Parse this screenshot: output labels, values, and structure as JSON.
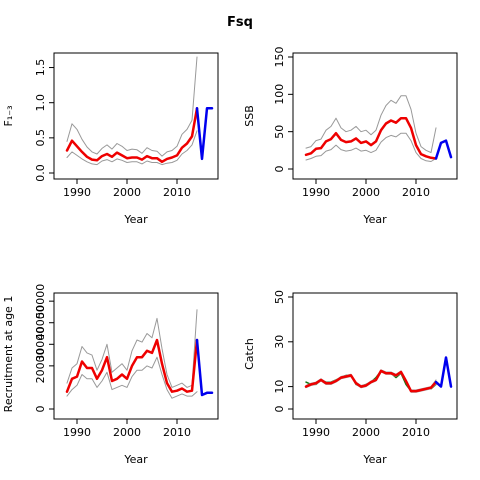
{
  "title": "Fsq",
  "colors": {
    "median": "#ee0000",
    "forecast": "#0000ee",
    "bounds": "#999999",
    "observed": "#117711",
    "axis": "#000000"
  },
  "chart_data": [
    {
      "type": "line",
      "xlabel": "Year",
      "ylabel": "F₁₋₃",
      "xlim": [
        1987,
        2017
      ],
      "ylim": [
        0,
        1.65
      ],
      "xticks": [
        1990,
        2000,
        2010
      ],
      "xtick_labels": [
        "1990",
        "2000",
        "2010"
      ],
      "yticks": [
        0,
        0.5,
        1,
        1.5
      ],
      "ytick_labels": [
        "0.0",
        "0.5",
        "1.0",
        "1.5"
      ],
      "series": [
        {
          "role": "upper",
          "x": [
            1988,
            1989,
            1990,
            1991,
            1992,
            1993,
            1994,
            1995,
            1996,
            1997,
            1998,
            1999,
            2000,
            2001,
            2002,
            2003,
            2004,
            2005,
            2006,
            2007,
            2008,
            2009,
            2010,
            2011,
            2012,
            2013,
            2014
          ],
          "values": [
            0.45,
            0.7,
            0.62,
            0.48,
            0.37,
            0.3,
            0.27,
            0.35,
            0.4,
            0.34,
            0.42,
            0.38,
            0.32,
            0.34,
            0.33,
            0.28,
            0.36,
            0.32,
            0.31,
            0.24,
            0.3,
            0.32,
            0.38,
            0.55,
            0.62,
            0.75,
            1.65
          ]
        },
        {
          "role": "lower",
          "x": [
            1988,
            1989,
            1990,
            1991,
            1992,
            1993,
            1994,
            1995,
            1996,
            1997,
            1998,
            1999,
            2000,
            2001,
            2002,
            2003,
            2004,
            2005,
            2006,
            2007,
            2008,
            2009,
            2010,
            2011,
            2012,
            2013,
            2014
          ],
          "values": [
            0.22,
            0.3,
            0.25,
            0.2,
            0.16,
            0.13,
            0.12,
            0.17,
            0.19,
            0.16,
            0.2,
            0.18,
            0.15,
            0.16,
            0.16,
            0.13,
            0.17,
            0.15,
            0.15,
            0.12,
            0.14,
            0.15,
            0.18,
            0.27,
            0.32,
            0.4,
            0.6
          ]
        },
        {
          "role": "median",
          "x": [
            1988,
            1989,
            1990,
            1991,
            1992,
            1993,
            1994,
            1995,
            1996,
            1997,
            1998,
            1999,
            2000,
            2001,
            2002,
            2003,
            2004,
            2005,
            2006,
            2007,
            2008,
            2009,
            2010,
            2011,
            2012,
            2013,
            2014
          ],
          "values": [
            0.32,
            0.46,
            0.38,
            0.3,
            0.23,
            0.19,
            0.18,
            0.24,
            0.27,
            0.23,
            0.29,
            0.25,
            0.21,
            0.22,
            0.22,
            0.19,
            0.24,
            0.21,
            0.21,
            0.16,
            0.2,
            0.22,
            0.25,
            0.36,
            0.42,
            0.52,
            0.92
          ]
        },
        {
          "role": "forecast",
          "x": [
            2014,
            2015,
            2016,
            2017
          ],
          "values": [
            0.92,
            0.2,
            0.92,
            0.92
          ]
        }
      ]
    },
    {
      "type": "line",
      "xlabel": "Year",
      "ylabel": "SSB",
      "xlim": [
        1987,
        2017
      ],
      "ylim": [
        0,
        150
      ],
      "xticks": [
        1990,
        2000,
        2010
      ],
      "xtick_labels": [
        "1990",
        "2000",
        "2010"
      ],
      "yticks": [
        0,
        50,
        100,
        150
      ],
      "ytick_labels": [
        "0",
        "50",
        "100",
        "150"
      ],
      "series": [
        {
          "role": "upper",
          "x": [
            1988,
            1989,
            1990,
            1991,
            1992,
            1993,
            1994,
            1995,
            1996,
            1997,
            1998,
            1999,
            2000,
            2001,
            2002,
            2003,
            2004,
            2005,
            2006,
            2007,
            2008,
            2009,
            2010,
            2011,
            2012,
            2013,
            2014
          ],
          "values": [
            28,
            30,
            38,
            40,
            52,
            57,
            68,
            55,
            50,
            52,
            57,
            50,
            52,
            46,
            52,
            72,
            85,
            92,
            88,
            98,
            98,
            80,
            48,
            30,
            25,
            22,
            55
          ]
        },
        {
          "role": "lower",
          "x": [
            1988,
            1989,
            1990,
            1991,
            1992,
            1993,
            1994,
            1995,
            1996,
            1997,
            1998,
            1999,
            2000,
            2001,
            2002,
            2003,
            2004,
            2005,
            2006,
            2007,
            2008,
            2009,
            2010,
            2011,
            2012,
            2013,
            2014
          ],
          "values": [
            12,
            14,
            17,
            18,
            24,
            26,
            32,
            26,
            24,
            25,
            28,
            24,
            25,
            22,
            25,
            36,
            42,
            45,
            43,
            48,
            48,
            38,
            22,
            14,
            11,
            10,
            14
          ]
        },
        {
          "role": "median",
          "x": [
            1988,
            1989,
            1990,
            1991,
            1992,
            1993,
            1994,
            1995,
            1996,
            1997,
            1998,
            1999,
            2000,
            2001,
            2002,
            2003,
            2004,
            2005,
            2006,
            2007,
            2008,
            2009,
            2010,
            2011,
            2012,
            2013,
            2014
          ],
          "values": [
            19,
            21,
            27,
            28,
            37,
            40,
            48,
            39,
            36,
            37,
            41,
            35,
            37,
            32,
            37,
            52,
            61,
            65,
            62,
            68,
            68,
            55,
            32,
            20,
            17,
            15,
            14
          ]
        },
        {
          "role": "forecast",
          "x": [
            2014,
            2015,
            2016,
            2017
          ],
          "values": [
            14,
            35,
            38,
            16
          ]
        }
      ]
    },
    {
      "type": "line",
      "xlabel": "Year",
      "ylabel": "Recruitment at age 1",
      "xlim": [
        1987,
        2017
      ],
      "ylim": [
        0,
        51000
      ],
      "xticks": [
        1990,
        2000,
        2010
      ],
      "xtick_labels": [
        "1990",
        "2000",
        "2010"
      ],
      "yticks": [
        0,
        20000,
        30000,
        40000,
        50000
      ],
      "ytick_labels": [
        "0",
        "20000",
        "30000",
        "40000",
        "50000"
      ],
      "series": [
        {
          "role": "upper",
          "x": [
            1988,
            1989,
            1990,
            1991,
            1992,
            1993,
            1994,
            1995,
            1996,
            1997,
            1998,
            1999,
            2000,
            2001,
            2002,
            2003,
            2004,
            2005,
            2006,
            2007,
            2008,
            2009,
            2010,
            2011,
            2012,
            2013,
            2014
          ],
          "values": [
            12000,
            19000,
            21000,
            29000,
            26000,
            25000,
            18000,
            23000,
            30000,
            17000,
            19000,
            21000,
            18000,
            27000,
            32000,
            31000,
            35000,
            33000,
            42000,
            28000,
            16000,
            10000,
            11000,
            12000,
            10000,
            11000,
            46000
          ]
        },
        {
          "role": "lower",
          "x": [
            1988,
            1989,
            1990,
            1991,
            1992,
            1993,
            1994,
            1995,
            1996,
            1997,
            1998,
            1999,
            2000,
            2001,
            2002,
            2003,
            2004,
            2005,
            2006,
            2007,
            2008,
            2009,
            2010,
            2011,
            2012,
            2013,
            2014
          ],
          "values": [
            6000,
            9000,
            11000,
            16000,
            14000,
            14000,
            10000,
            13000,
            17000,
            9000,
            10000,
            11000,
            10000,
            15000,
            18000,
            18000,
            20000,
            19000,
            24000,
            16000,
            9000,
            5000,
            6000,
            7000,
            6000,
            6000,
            8000
          ]
        },
        {
          "role": "median",
          "x": [
            1988,
            1989,
            1990,
            1991,
            1992,
            1993,
            1994,
            1995,
            1996,
            1997,
            1998,
            1999,
            2000,
            2001,
            2002,
            2003,
            2004,
            2005,
            2006,
            2007,
            2008,
            2009,
            2010,
            2011,
            2012,
            2013,
            2014
          ],
          "values": [
            8000,
            14000,
            15000,
            22000,
            19000,
            19000,
            14000,
            18000,
            24000,
            13000,
            14000,
            16000,
            14000,
            20000,
            24000,
            24000,
            27000,
            26000,
            32000,
            21000,
            12000,
            8000,
            8500,
            9500,
            8000,
            8500,
            32000
          ]
        },
        {
          "role": "forecast",
          "x": [
            2014,
            2015,
            2016,
            2017
          ],
          "values": [
            32000,
            6500,
            7500,
            7500
          ]
        }
      ]
    },
    {
      "type": "line",
      "xlabel": "Year",
      "ylabel": "Catch",
      "xlim": [
        1987,
        2017
      ],
      "ylim": [
        0,
        50
      ],
      "xticks": [
        1990,
        2000,
        2010
      ],
      "xtick_labels": [
        "1990",
        "2000",
        "2010"
      ],
      "yticks": [
        0,
        10,
        30,
        50
      ],
      "ytick_labels": [
        "0",
        "10",
        "30",
        "50"
      ],
      "series": [
        {
          "role": "observed",
          "x": [
            1988,
            1989,
            1990,
            1991,
            1992,
            1993,
            1994,
            1995,
            1996,
            1997,
            1998,
            1999,
            2000,
            2001,
            2002,
            2003,
            2004,
            2005,
            2006,
            2007,
            2008,
            2009,
            2010,
            2011,
            2012,
            2013,
            2014
          ],
          "values": [
            12,
            11,
            11,
            13,
            12,
            12,
            13,
            14,
            15,
            15,
            11,
            10,
            11,
            12,
            14,
            17,
            16,
            16,
            14,
            16,
            11,
            8,
            8,
            8.5,
            9,
            9,
            11
          ]
        },
        {
          "role": "upper",
          "x": [
            1988,
            1989,
            1990,
            1991,
            1992,
            1993,
            1994,
            1995,
            1996,
            1997,
            1998,
            1999,
            2000,
            2001,
            2002,
            2003,
            2004,
            2005,
            2006,
            2007,
            2008,
            2009,
            2010,
            2011,
            2012,
            2013,
            2014
          ],
          "values": [
            10.5,
            11.5,
            12,
            13.5,
            12,
            12,
            13,
            14.5,
            15,
            15.5,
            12,
            10.5,
            11,
            12.5,
            13.5,
            17.5,
            16.5,
            16.5,
            15.5,
            17,
            13,
            8.5,
            8.5,
            9,
            9.5,
            10,
            13
          ]
        },
        {
          "role": "lower",
          "x": [
            1988,
            1989,
            1990,
            1991,
            1992,
            1993,
            1994,
            1995,
            1996,
            1997,
            1998,
            1999,
            2000,
            2001,
            2002,
            2003,
            2004,
            2005,
            2006,
            2007,
            2008,
            2009,
            2010,
            2011,
            2012,
            2013,
            2014
          ],
          "values": [
            9.5,
            10.5,
            11,
            12.5,
            11,
            11,
            12,
            13.5,
            14,
            14.5,
            11,
            9.5,
            10,
            11.5,
            12.5,
            16.5,
            15.5,
            15.5,
            14.5,
            16,
            12,
            7.5,
            7.5,
            8,
            8.5,
            9,
            11
          ]
        },
        {
          "role": "median",
          "x": [
            1988,
            1989,
            1990,
            1991,
            1992,
            1993,
            1994,
            1995,
            1996,
            1997,
            1998,
            1999,
            2000,
            2001,
            2002,
            2003,
            2004,
            2005,
            2006,
            2007,
            2008,
            2009,
            2010,
            2011,
            2012,
            2013,
            2014
          ],
          "values": [
            10,
            11,
            11.5,
            13,
            11.5,
            11.5,
            12.5,
            14,
            14.5,
            15,
            11.5,
            10,
            10.5,
            12,
            13,
            17,
            16,
            16,
            15,
            16.5,
            12.5,
            8,
            8,
            8.5,
            9,
            9.5,
            12
          ]
        },
        {
          "role": "forecast",
          "x": [
            2014,
            2015,
            2016,
            2017
          ],
          "values": [
            12,
            10,
            23,
            10
          ]
        }
      ]
    }
  ]
}
